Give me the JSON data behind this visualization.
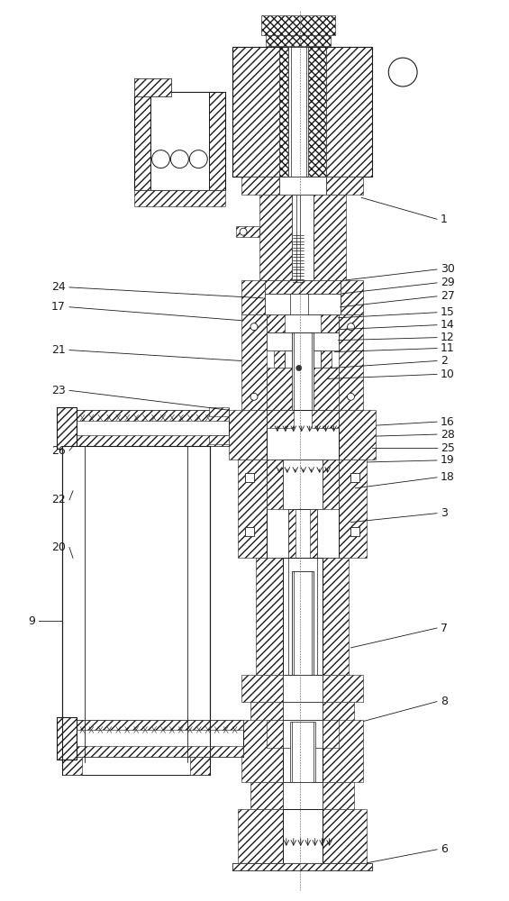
{
  "bg_color": "#ffffff",
  "line_color": "#1a1a1a",
  "fig_width": 5.65,
  "fig_height": 10.0,
  "dpi": 100,
  "right_labels": [
    [
      "1",
      488,
      242
    ],
    [
      "30",
      488,
      298
    ],
    [
      "29",
      488,
      312
    ],
    [
      "27",
      488,
      328
    ],
    [
      "15",
      488,
      346
    ],
    [
      "14",
      488,
      360
    ],
    [
      "12",
      488,
      374
    ],
    [
      "11",
      488,
      386
    ],
    [
      "2",
      488,
      400
    ],
    [
      "10",
      488,
      415
    ],
    [
      "16",
      488,
      468
    ],
    [
      "28",
      488,
      482
    ],
    [
      "25",
      488,
      497
    ],
    [
      "19",
      488,
      511
    ],
    [
      "18",
      488,
      530
    ],
    [
      "3",
      488,
      570
    ],
    [
      "7",
      488,
      698
    ],
    [
      "8",
      488,
      780
    ],
    [
      "6",
      488,
      945
    ]
  ],
  "left_labels": [
    [
      "24",
      75,
      320
    ],
    [
      "17",
      75,
      342
    ],
    [
      "21",
      75,
      390
    ],
    [
      "23",
      75,
      435
    ],
    [
      "26",
      75,
      502
    ],
    [
      "22",
      75,
      555
    ],
    [
      "20",
      75,
      608
    ],
    [
      "9",
      42,
      690
    ]
  ]
}
